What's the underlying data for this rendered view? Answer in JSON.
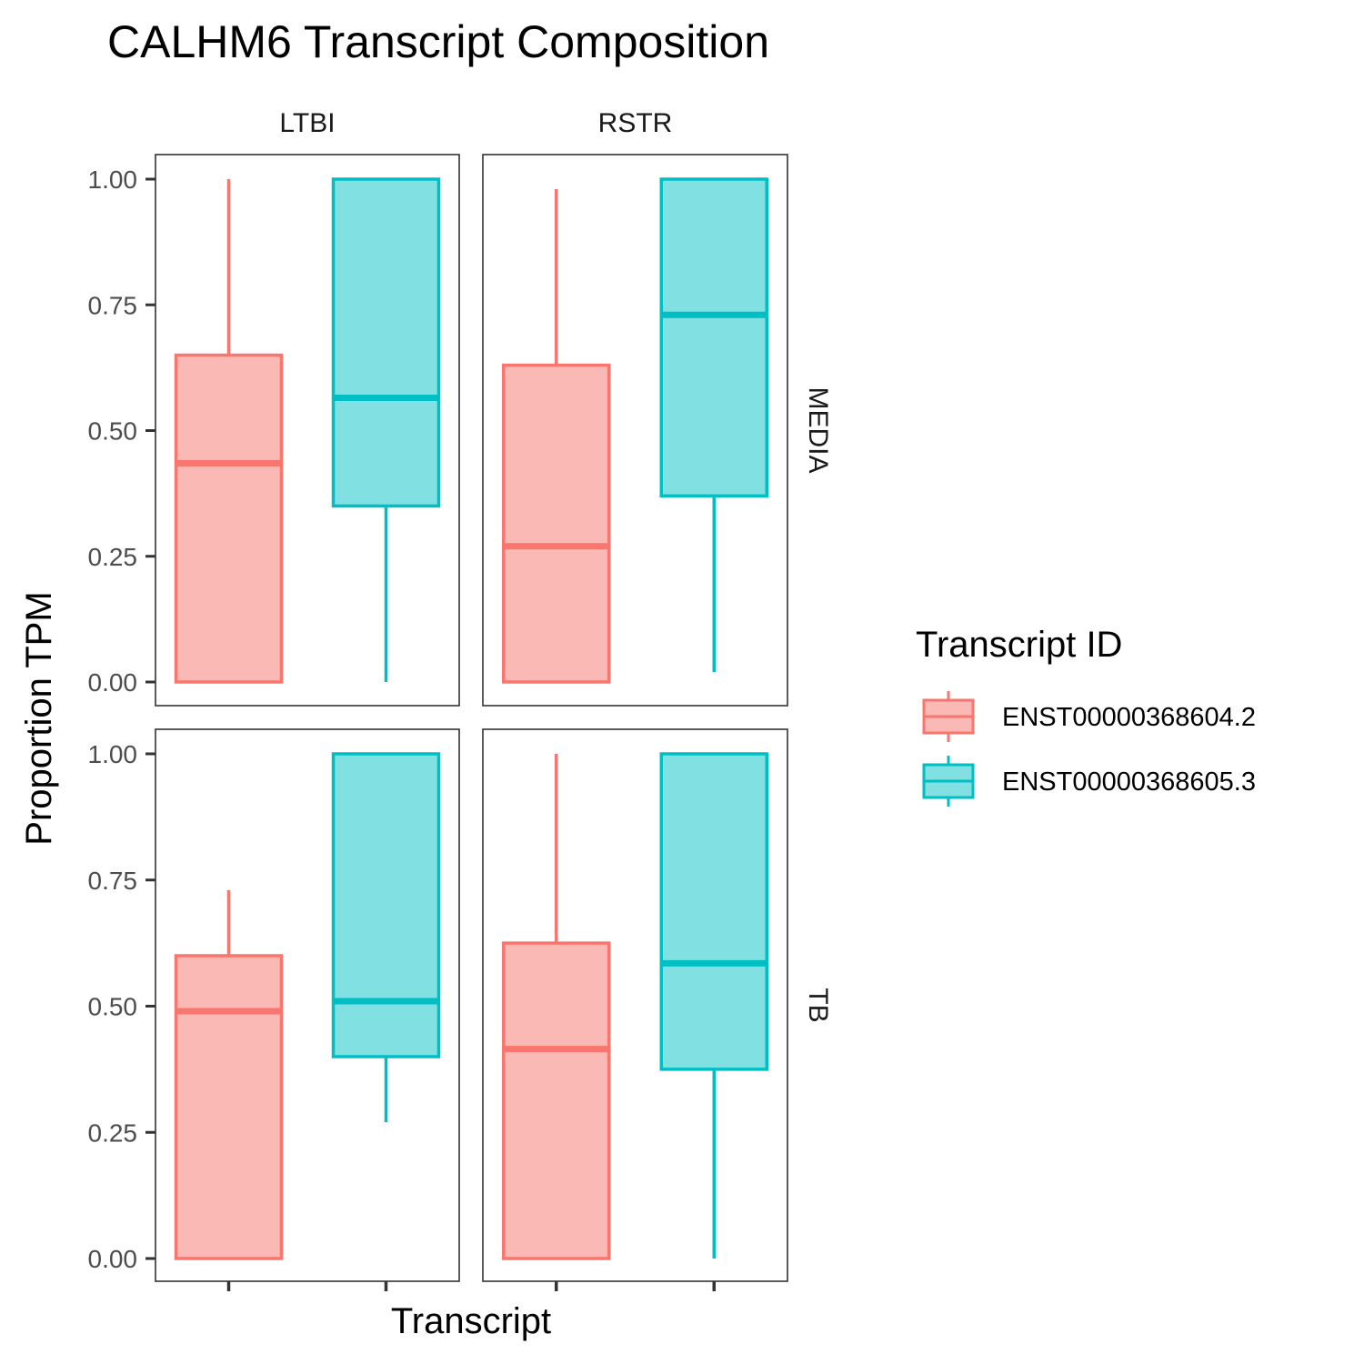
{
  "chart_data": {
    "type": "boxplot",
    "title": "CALHM6 Transcript Composition",
    "xlabel": "Transcript",
    "ylabel": "Proportion TPM",
    "ylim": [
      0,
      1
    ],
    "yticks": [
      "0.00",
      "0.25",
      "0.50",
      "0.75",
      "1.00"
    ],
    "facet_cols": [
      "LTBI",
      "RSTR"
    ],
    "facet_rows": [
      "MEDIA",
      "TB"
    ],
    "legend": {
      "title": "Transcript ID",
      "position": "right",
      "items": [
        {
          "name": "ENST00000368604.2",
          "color": "#F8766D",
          "fill": "#FAB9B5"
        },
        {
          "name": "ENST00000368605.3",
          "color": "#00BFC4",
          "fill": "#80E0E2"
        }
      ]
    },
    "panels": [
      {
        "row": "MEDIA",
        "col": "LTBI",
        "boxes": [
          {
            "series": "ENST00000368604.2",
            "min": 0.0,
            "q1": 0.0,
            "median": 0.435,
            "q3": 0.65,
            "max": 1.0
          },
          {
            "series": "ENST00000368605.3",
            "min": 0.0,
            "q1": 0.35,
            "median": 0.565,
            "q3": 1.0,
            "max": 1.0
          }
        ]
      },
      {
        "row": "MEDIA",
        "col": "RSTR",
        "boxes": [
          {
            "series": "ENST00000368604.2",
            "min": 0.0,
            "q1": 0.0,
            "median": 0.27,
            "q3": 0.63,
            "max": 0.98
          },
          {
            "series": "ENST00000368605.3",
            "min": 0.02,
            "q1": 0.37,
            "median": 0.73,
            "q3": 1.0,
            "max": 1.0
          }
        ]
      },
      {
        "row": "TB",
        "col": "LTBI",
        "boxes": [
          {
            "series": "ENST00000368604.2",
            "min": 0.0,
            "q1": 0.0,
            "median": 0.49,
            "q3": 0.6,
            "max": 0.73
          },
          {
            "series": "ENST00000368605.3",
            "min": 0.27,
            "q1": 0.4,
            "median": 0.51,
            "q3": 1.0,
            "max": 1.0
          }
        ]
      },
      {
        "row": "TB",
        "col": "RSTR",
        "boxes": [
          {
            "series": "ENST00000368604.2",
            "min": 0.0,
            "q1": 0.0,
            "median": 0.415,
            "q3": 0.625,
            "max": 1.0
          },
          {
            "series": "ENST00000368605.3",
            "min": 0.0,
            "q1": 0.375,
            "median": 0.585,
            "q3": 1.0,
            "max": 1.0
          }
        ]
      }
    ]
  }
}
